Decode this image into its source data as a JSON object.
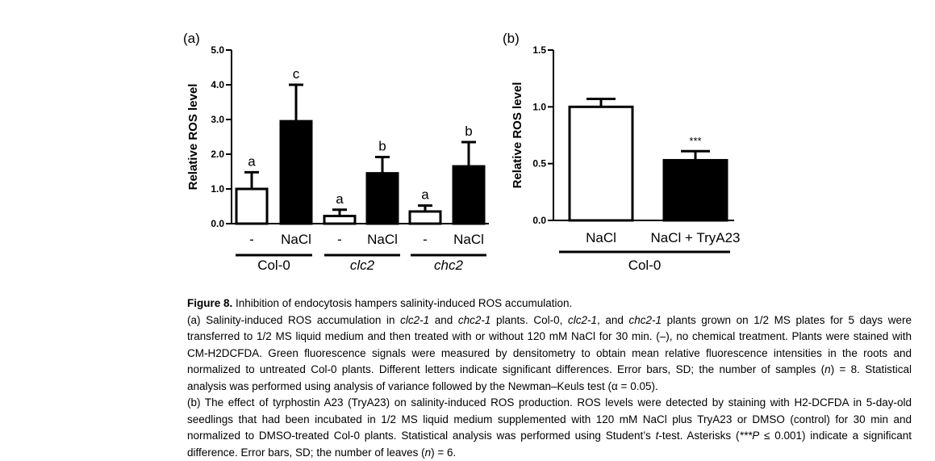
{
  "chart_data": [
    {
      "type": "bar",
      "panel_label": "(a)",
      "ylabel": "Relative ROS level",
      "ylim": [
        0,
        5
      ],
      "yticks": [
        "0.0",
        "1.0",
        "2.0",
        "3.0",
        "4.0",
        "5.0"
      ],
      "bars": [
        {
          "label": "-",
          "group": "Col-0",
          "value": 1.0,
          "error": 0.48,
          "letter": "a",
          "fill": "white"
        },
        {
          "label": "NaCl",
          "group": "Col-0",
          "value": 2.95,
          "error": 1.05,
          "letter": "c",
          "fill": "black"
        },
        {
          "label": "-",
          "group": "clc2",
          "value": 0.22,
          "error": 0.18,
          "letter": "a",
          "fill": "white"
        },
        {
          "label": "NaCl",
          "group": "clc2",
          "value": 1.45,
          "error": 0.47,
          "letter": "b",
          "fill": "black"
        },
        {
          "label": "-",
          "group": "chc2",
          "value": 0.35,
          "error": 0.17,
          "letter": "a",
          "fill": "white"
        },
        {
          "label": "NaCl",
          "group": "chc2",
          "value": 1.65,
          "error": 0.7,
          "letter": "b",
          "fill": "black"
        }
      ],
      "groups": [
        "Col-0",
        "clc2",
        "chc2"
      ]
    },
    {
      "type": "bar",
      "panel_label": "(b)",
      "ylabel": "Relative ROS level",
      "ylim": [
        0,
        1.5
      ],
      "yticks": [
        "0.0",
        "0.5",
        "1.0",
        "1.5"
      ],
      "bars": [
        {
          "label": "NaCl",
          "group": "Col-0",
          "value": 1.0,
          "error": 0.07,
          "letter": "",
          "fill": "white"
        },
        {
          "label": "NaCl + TryA23",
          "group": "Col-0",
          "value": 0.53,
          "error": 0.08,
          "letter": "***",
          "fill": "black"
        }
      ],
      "groups": [
        "Col-0"
      ]
    }
  ],
  "caption": {
    "title": "Figure 8.",
    "title_rest": " Inhibition of endocytosis hampers salinity-induced ROS accumulation.",
    "para_a_1": "(a) Salinity-induced ROS accumulation in ",
    "para_a_clc": "clc2-1",
    "para_a_2": " and ",
    "para_a_chc": "chc2-1",
    "para_a_3": " plants. Col-0, ",
    "para_a_clc_b": "clc2-1",
    "para_a_4": ", and ",
    "para_a_chc_b": "chc2-1",
    "para_a_5": " plants grown on 1/2 MS plates for 5 days were transferred to 1/2 MS liquid medium and then treated with or without 120 mM NaCl for 30 min. (–), no chemical treatment. Plants were stained with CM-H2DCFDA. Green fluorescence signals were measured by densitometry to obtain mean relative fluorescence intensities in the roots and normalized to untreated Col-0 plants. Different letters indicate significant differences. Error bars, SD; the number of samples (",
    "para_a_n": "n",
    "para_a_6": ") = 8. Statistical analysis was performed using analysis of variance followed by the Newman–Keuls test (α = 0.05).",
    "para_b_1": "(b) The effect of tyrphostin A23 (TryA23) on salinity-induced ROS production. ROS levels were detected by staining with H2-DCFDA in 5-day-old seedlings that had been incubated in 1/2 MS liquid medium supplemented with 120 mM NaCl plus TryA23 or DMSO (control) for 30 min and normalized to DMSO-treated Col-0 plants. Statistical analysis was performed using Student’s ",
    "para_b_t": "t",
    "para_b_2": "-test. Asterisks (",
    "para_b_p": "***P",
    "para_b_3": " ≤ 0.001) indicate a significant difference. Error bars, SD; the number of leaves (",
    "para_b_n": "n",
    "para_b_4": ") = 6."
  }
}
